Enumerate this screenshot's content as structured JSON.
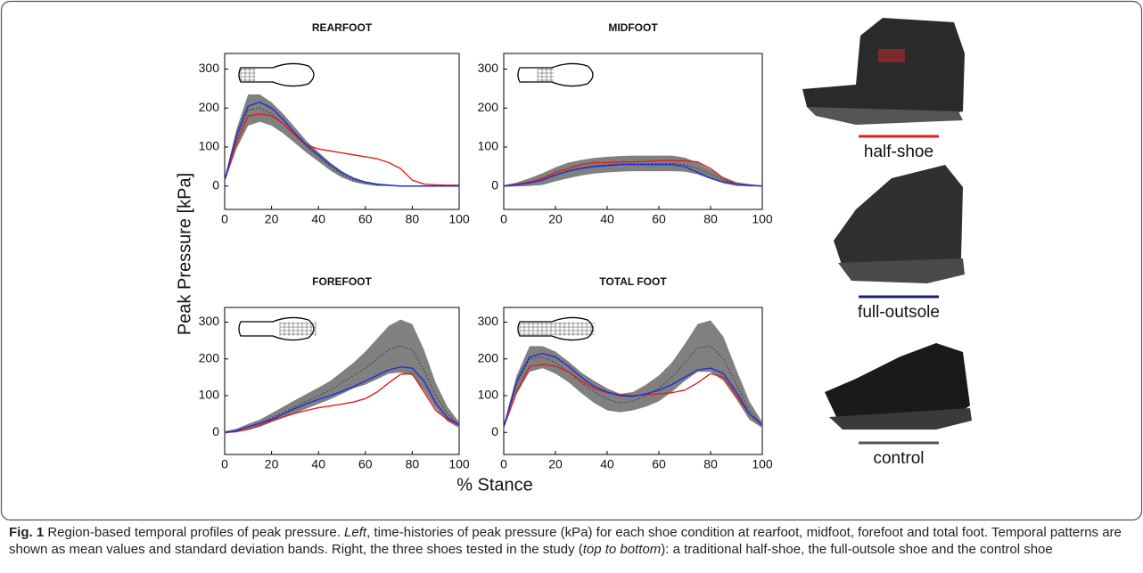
{
  "figure": {
    "ylabel": "Peak Pressure [kPa]",
    "xlabel": "% Stance"
  },
  "shoes": [
    {
      "label": "half-shoe",
      "color": "#e01e1e"
    },
    {
      "label": "full-outsole",
      "color": "#1a1f7a"
    },
    {
      "label": "control",
      "color": "#555555"
    }
  ],
  "caption": {
    "label": "Fig. 1",
    "parts": [
      "Region-based temporal profiles of peak pressure. ",
      "Left",
      ", time-histories of peak pressure (kPa) for each shoe condition at rearfoot, midfoot, forefoot and total foot. Temporal patterns are shown as mean values and standard deviation bands. Right, the three shoes tested in the study (",
      "top to bottom",
      "): a traditional half-shoe, the full-outsole shoe and the control shoe"
    ]
  },
  "chart_data": [
    {
      "type": "line",
      "title": "REARFOOT",
      "x": [
        0,
        5,
        10,
        15,
        20,
        25,
        30,
        35,
        40,
        45,
        50,
        55,
        60,
        65,
        70,
        75,
        80,
        85,
        90,
        95,
        100
      ],
      "xlim": [
        0,
        100
      ],
      "xticks": [
        0,
        20,
        40,
        60,
        80,
        100
      ],
      "ylim": [
        -60,
        340
      ],
      "yticks": [
        0,
        100,
        200,
        300
      ],
      "series": [
        {
          "color": "#e01e1e",
          "values": [
            15,
            110,
            180,
            185,
            180,
            160,
            130,
            105,
            95,
            90,
            85,
            80,
            75,
            70,
            60,
            45,
            15,
            5,
            3,
            2,
            2
          ]
        },
        {
          "color": "#1f2fd6",
          "values": [
            15,
            130,
            205,
            215,
            200,
            170,
            135,
            105,
            80,
            55,
            35,
            20,
            10,
            5,
            2,
            0,
            0,
            0,
            0,
            0,
            0
          ]
        },
        {
          "color": "#333333",
          "band_color": "#808080",
          "values": [
            15,
            120,
            195,
            200,
            185,
            160,
            130,
            100,
            75,
            50,
            30,
            15,
            8,
            3,
            2,
            0,
            0,
            0,
            0,
            0,
            0
          ],
          "error": [
            5,
            25,
            40,
            35,
            30,
            25,
            20,
            15,
            12,
            10,
            8,
            5,
            4,
            3,
            2,
            1,
            1,
            1,
            1,
            1,
            1
          ]
        }
      ]
    },
    {
      "type": "line",
      "title": "MIDFOOT",
      "x": [
        0,
        5,
        10,
        15,
        20,
        25,
        30,
        35,
        40,
        45,
        50,
        55,
        60,
        65,
        70,
        75,
        80,
        85,
        90,
        95,
        100
      ],
      "xlim": [
        0,
        100
      ],
      "xticks": [
        0,
        20,
        40,
        60,
        80,
        100
      ],
      "ylim": [
        -60,
        340
      ],
      "yticks": [
        0,
        100,
        200,
        300
      ],
      "series": [
        {
          "color": "#e01e1e",
          "values": [
            0,
            5,
            10,
            20,
            35,
            45,
            55,
            60,
            60,
            62,
            62,
            63,
            65,
            65,
            65,
            62,
            45,
            20,
            5,
            2,
            0
          ]
        },
        {
          "color": "#1f2fd6",
          "values": [
            0,
            3,
            8,
            15,
            28,
            38,
            45,
            50,
            52,
            55,
            55,
            55,
            55,
            55,
            50,
            35,
            20,
            10,
            5,
            2,
            0
          ]
        },
        {
          "color": "#333333",
          "band_color": "#808080",
          "values": [
            0,
            4,
            10,
            18,
            30,
            40,
            47,
            52,
            55,
            57,
            58,
            58,
            58,
            58,
            55,
            45,
            30,
            15,
            5,
            2,
            0
          ],
          "error": [
            2,
            5,
            10,
            15,
            18,
            20,
            20,
            20,
            20,
            20,
            20,
            20,
            20,
            20,
            18,
            15,
            12,
            8,
            5,
            3,
            1
          ]
        }
      ]
    },
    {
      "type": "line",
      "title": "FOREFOOT",
      "x": [
        0,
        5,
        10,
        15,
        20,
        25,
        30,
        35,
        40,
        45,
        50,
        55,
        60,
        65,
        70,
        75,
        80,
        85,
        90,
        95,
        100
      ],
      "xlim": [
        0,
        100
      ],
      "xticks": [
        0,
        20,
        40,
        60,
        80,
        100
      ],
      "ylim": [
        -60,
        340
      ],
      "yticks": [
        0,
        100,
        200,
        300
      ],
      "series": [
        {
          "color": "#e01e1e",
          "values": [
            0,
            3,
            8,
            20,
            32,
            42,
            52,
            60,
            67,
            72,
            77,
            83,
            92,
            110,
            135,
            158,
            160,
            110,
            60,
            35,
            20
          ]
        },
        {
          "color": "#1f2fd6",
          "values": [
            0,
            5,
            15,
            25,
            35,
            50,
            65,
            78,
            90,
            100,
            112,
            125,
            140,
            155,
            170,
            178,
            175,
            140,
            80,
            40,
            20
          ]
        },
        {
          "color": "#333333",
          "band_color": "#808080",
          "values": [
            0,
            5,
            15,
            25,
            40,
            55,
            70,
            85,
            100,
            115,
            135,
            155,
            175,
            200,
            225,
            235,
            225,
            170,
            100,
            50,
            20
          ],
          "error": [
            3,
            5,
            8,
            10,
            12,
            15,
            18,
            20,
            22,
            25,
            30,
            35,
            45,
            55,
            65,
            72,
            70,
            55,
            35,
            20,
            8
          ]
        }
      ]
    },
    {
      "type": "line",
      "title": "TOTAL FOOT",
      "x": [
        0,
        5,
        10,
        15,
        20,
        25,
        30,
        35,
        40,
        45,
        50,
        55,
        60,
        65,
        70,
        75,
        80,
        85,
        90,
        95,
        100
      ],
      "xlim": [
        0,
        100
      ],
      "xticks": [
        0,
        20,
        40,
        60,
        80,
        100
      ],
      "ylim": [
        -60,
        340
      ],
      "yticks": [
        0,
        100,
        200,
        300
      ],
      "series": [
        {
          "color": "#e01e1e",
          "values": [
            15,
            110,
            180,
            185,
            180,
            165,
            140,
            120,
            108,
            103,
            100,
            102,
            105,
            108,
            115,
            135,
            160,
            150,
            100,
            50,
            20
          ]
        },
        {
          "color": "#1f2fd6",
          "values": [
            15,
            140,
            205,
            215,
            205,
            180,
            150,
            125,
            110,
            100,
            98,
            105,
            115,
            130,
            150,
            170,
            175,
            160,
            110,
            50,
            20
          ]
        },
        {
          "color": "#333333",
          "band_color": "#808080",
          "values": [
            15,
            130,
            200,
            205,
            190,
            165,
            135,
            110,
            90,
            80,
            85,
            100,
            120,
            150,
            190,
            230,
            235,
            200,
            130,
            60,
            20
          ],
          "error": [
            5,
            25,
            35,
            30,
            30,
            28,
            28,
            30,
            30,
            25,
            25,
            30,
            35,
            40,
            50,
            65,
            70,
            60,
            40,
            25,
            8
          ]
        }
      ]
    }
  ]
}
